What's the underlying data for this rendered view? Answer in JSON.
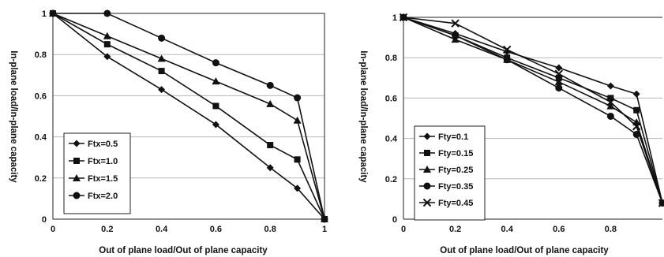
{
  "chart_data": [
    {
      "type": "line",
      "xlabel": "Out of plane load/Out of plane capacity",
      "ylabel": "In-plane load/In-plane capacity",
      "xlim": [
        0,
        1
      ],
      "ylim": [
        0,
        1
      ],
      "x_ticks": [
        "0",
        "0.2",
        "0.4",
        "0.6",
        "0.8",
        "1"
      ],
      "y_ticks": [
        "0",
        "0.2",
        "0.4",
        "0.6",
        "0.8",
        "1"
      ],
      "grid": "horizontal",
      "legend_position": "bottom-left",
      "series": [
        {
          "name": "Ftx=0.5",
          "marker": "diamond",
          "x": [
            0,
            0.2,
            0.4,
            0.6,
            0.8,
            0.9,
            1
          ],
          "y": [
            1,
            0.79,
            0.63,
            0.46,
            0.25,
            0.15,
            0
          ]
        },
        {
          "name": "Ftx=1.0",
          "marker": "square",
          "x": [
            0,
            0.2,
            0.4,
            0.6,
            0.8,
            0.9,
            1
          ],
          "y": [
            1,
            0.85,
            0.72,
            0.55,
            0.36,
            0.29,
            0
          ]
        },
        {
          "name": "Ftx=1.5",
          "marker": "triangle",
          "x": [
            0,
            0.2,
            0.4,
            0.6,
            0.8,
            0.9,
            1
          ],
          "y": [
            1,
            0.89,
            0.78,
            0.67,
            0.56,
            0.48,
            0
          ]
        },
        {
          "name": "Ftx=2.0",
          "marker": "circle",
          "x": [
            0,
            0.2,
            0.4,
            0.6,
            0.8,
            0.9,
            1
          ],
          "y": [
            1,
            1,
            0.88,
            0.76,
            0.65,
            0.59,
            0
          ]
        }
      ]
    },
    {
      "type": "line",
      "xlabel": "Out of plane load/Out of plane capacity",
      "ylabel": "In-plane load/In-plane capacity",
      "xlim": [
        0,
        1
      ],
      "ylim": [
        0,
        1
      ],
      "x_ticks": [
        "0",
        "0.2",
        "0.4",
        "0.6",
        "0.8"
      ],
      "y_ticks": [
        "0",
        "0.2",
        "0.4",
        "0.6",
        "0.8",
        "1"
      ],
      "grid": "horizontal",
      "legend_position": "bottom-left",
      "series": [
        {
          "name": "Fty=0.1",
          "marker": "diamond",
          "x": [
            0,
            0.2,
            0.4,
            0.6,
            0.8,
            0.9,
            1
          ],
          "y": [
            1,
            0.92,
            0.83,
            0.75,
            0.66,
            0.62,
            0.08
          ]
        },
        {
          "name": "Fty=0.15",
          "marker": "square",
          "x": [
            0,
            0.2,
            0.4,
            0.6,
            0.8,
            0.9,
            1
          ],
          "y": [
            1,
            0.91,
            0.8,
            0.7,
            0.6,
            0.54,
            0.08
          ]
        },
        {
          "name": "Fty=0.25",
          "marker": "triangle",
          "x": [
            0,
            0.2,
            0.4,
            0.6,
            0.8,
            0.9,
            1
          ],
          "y": [
            1,
            0.89,
            0.79,
            0.68,
            0.56,
            0.48,
            0.08
          ]
        },
        {
          "name": "Fty=0.35",
          "marker": "circle",
          "x": [
            0,
            0.2,
            0.4,
            0.6,
            0.8,
            0.9,
            1
          ],
          "y": [
            1,
            0.91,
            0.79,
            0.65,
            0.51,
            0.42,
            0.08
          ]
        },
        {
          "name": "Fty=0.45",
          "marker": "x",
          "x": [
            0,
            0.2,
            0.4,
            0.6,
            0.8,
            0.9,
            1
          ],
          "y": [
            1,
            0.97,
            0.84,
            0.72,
            0.58,
            0.46,
            0.08
          ]
        }
      ]
    }
  ]
}
